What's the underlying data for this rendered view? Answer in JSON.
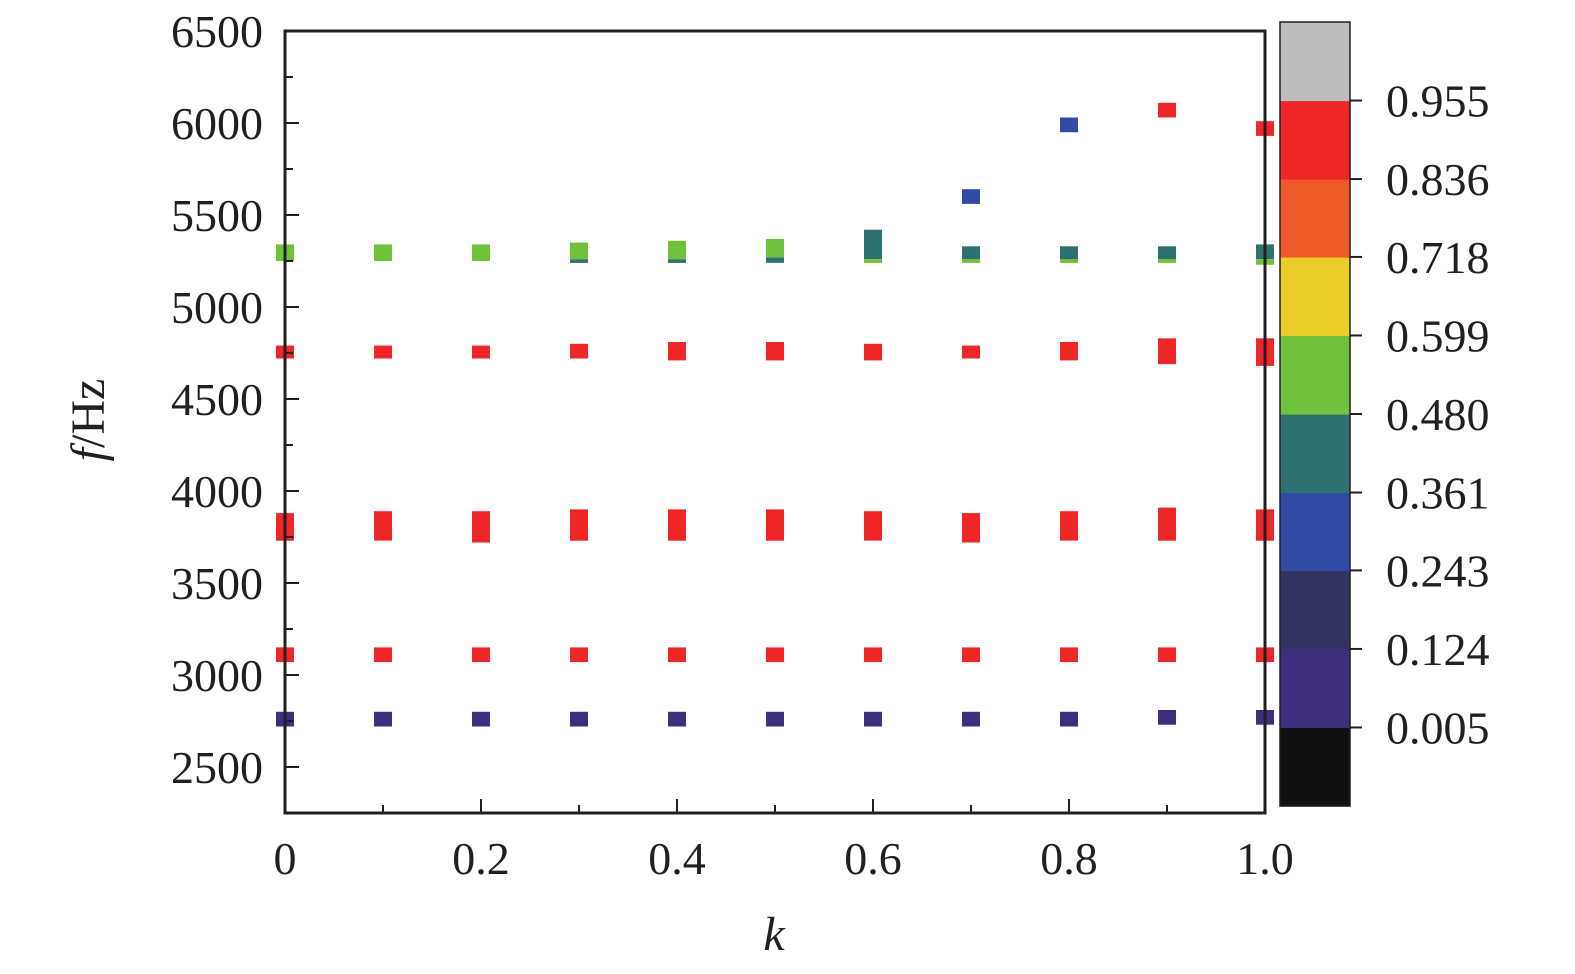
{
  "chart_data": {
    "type": "scatter",
    "xlabel": {
      "symbol": "k"
    },
    "ylabel": {
      "symbol": "f",
      "unit": "/Hz"
    },
    "xlim": [
      0,
      1.0
    ],
    "ylim": [
      2250,
      6500
    ],
    "x_ticks": [
      0,
      0.2,
      0.4,
      0.6,
      0.8,
      1.0
    ],
    "x_tick_labels": [
      "0",
      "0.2",
      "0.4",
      "0.6",
      "0.8",
      "1.0"
    ],
    "x_minor_ticks": [
      0.1,
      0.3,
      0.5,
      0.7,
      0.9
    ],
    "y_ticks": [
      2500,
      3000,
      3500,
      4000,
      4500,
      5000,
      5500,
      6000,
      6500
    ],
    "y_tick_labels": [
      "2500",
      "3000",
      "3500",
      "4000",
      "4500",
      "5000",
      "5500",
      "6000",
      "6500"
    ],
    "grid": false,
    "legend": "none",
    "colorbar": {
      "bands": [
        {
          "from": -0.114,
          "to": 0.005,
          "color": "#111111"
        },
        {
          "from": 0.005,
          "to": 0.124,
          "color": "#3f2e7e"
        },
        {
          "from": 0.124,
          "to": 0.243,
          "color": "#333463"
        },
        {
          "from": 0.243,
          "to": 0.361,
          "color": "#2f4ba4"
        },
        {
          "from": 0.361,
          "to": 0.48,
          "color": "#2f7070"
        },
        {
          "from": 0.48,
          "to": 0.599,
          "color": "#6fc23a"
        },
        {
          "from": 0.599,
          "to": 0.718,
          "color": "#ebcd27"
        },
        {
          "from": 0.718,
          "to": 0.836,
          "color": "#f05a28"
        },
        {
          "from": 0.836,
          "to": 0.955,
          "color": "#ee2628"
        },
        {
          "from": 0.955,
          "to": 1.074,
          "color": "#bcbcbc"
        }
      ],
      "tick_labels": [
        "0.005",
        "0.124",
        "0.243",
        "0.361",
        "0.480",
        "0.599",
        "0.718",
        "0.836",
        "0.955"
      ]
    },
    "markers": [
      {
        "k": 0,
        "f_top": 4790,
        "f_bottom": 4720,
        "color": "#ee2628"
      },
      {
        "k": 0.1,
        "f_top": 4790,
        "f_bottom": 4720,
        "color": "#ee2628"
      },
      {
        "k": 0.2,
        "f_top": 4790,
        "f_bottom": 4720,
        "color": "#ee2628"
      },
      {
        "k": 0.3,
        "f_top": 4800,
        "f_bottom": 4720,
        "color": "#ee2628"
      },
      {
        "k": 0.4,
        "f_top": 4810,
        "f_bottom": 4710,
        "color": "#ee2628"
      },
      {
        "k": 0.5,
        "f_top": 4810,
        "f_bottom": 4710,
        "color": "#ee2628"
      },
      {
        "k": 0.6,
        "f_top": 4800,
        "f_bottom": 4710,
        "color": "#ee2628"
      },
      {
        "k": 0.7,
        "f_top": 4790,
        "f_bottom": 4720,
        "color": "#ee2628"
      },
      {
        "k": 0.8,
        "f_top": 4810,
        "f_bottom": 4710,
        "color": "#ee2628"
      },
      {
        "k": 0.9,
        "f_top": 4830,
        "f_bottom": 4690,
        "color": "#ee2628"
      },
      {
        "k": 1.0,
        "f_top": 4830,
        "f_bottom": 4680,
        "color": "#ee2628"
      },
      {
        "k": 0,
        "f_top": 3880,
        "f_bottom": 3730,
        "color": "#ee2628"
      },
      {
        "k": 0.1,
        "f_top": 3890,
        "f_bottom": 3730,
        "color": "#ee2628"
      },
      {
        "k": 0.2,
        "f_top": 3890,
        "f_bottom": 3720,
        "color": "#ee2628"
      },
      {
        "k": 0.3,
        "f_top": 3900,
        "f_bottom": 3730,
        "color": "#ee2628"
      },
      {
        "k": 0.4,
        "f_top": 3900,
        "f_bottom": 3730,
        "color": "#ee2628"
      },
      {
        "k": 0.5,
        "f_top": 3900,
        "f_bottom": 3730,
        "color": "#ee2628"
      },
      {
        "k": 0.6,
        "f_top": 3890,
        "f_bottom": 3730,
        "color": "#ee2628"
      },
      {
        "k": 0.7,
        "f_top": 3880,
        "f_bottom": 3720,
        "color": "#ee2628"
      },
      {
        "k": 0.8,
        "f_top": 3890,
        "f_bottom": 3730,
        "color": "#ee2628"
      },
      {
        "k": 0.9,
        "f_top": 3910,
        "f_bottom": 3730,
        "color": "#ee2628"
      },
      {
        "k": 1.0,
        "f_top": 3900,
        "f_bottom": 3730,
        "color": "#ee2628"
      },
      {
        "k": 0,
        "f_top": 3150,
        "f_bottom": 3070,
        "color": "#ee2628"
      },
      {
        "k": 0.1,
        "f_top": 3150,
        "f_bottom": 3070,
        "color": "#ee2628"
      },
      {
        "k": 0.2,
        "f_top": 3150,
        "f_bottom": 3070,
        "color": "#ee2628"
      },
      {
        "k": 0.3,
        "f_top": 3150,
        "f_bottom": 3070,
        "color": "#ee2628"
      },
      {
        "k": 0.4,
        "f_top": 3150,
        "f_bottom": 3070,
        "color": "#ee2628"
      },
      {
        "k": 0.5,
        "f_top": 3150,
        "f_bottom": 3070,
        "color": "#ee2628"
      },
      {
        "k": 0.6,
        "f_top": 3150,
        "f_bottom": 3070,
        "color": "#ee2628"
      },
      {
        "k": 0.7,
        "f_top": 3150,
        "f_bottom": 3070,
        "color": "#ee2628"
      },
      {
        "k": 0.8,
        "f_top": 3150,
        "f_bottom": 3070,
        "color": "#ee2628"
      },
      {
        "k": 0.9,
        "f_top": 3150,
        "f_bottom": 3070,
        "color": "#ee2628"
      },
      {
        "k": 1.0,
        "f_top": 3150,
        "f_bottom": 3070,
        "color": "#ee2628"
      },
      {
        "k": 0,
        "f_top": 2800,
        "f_bottom": 2720,
        "color": "#3f2e7e"
      },
      {
        "k": 0.1,
        "f_top": 2800,
        "f_bottom": 2720,
        "color": "#3f2e7e"
      },
      {
        "k": 0.2,
        "f_top": 2800,
        "f_bottom": 2720,
        "color": "#3f2e7e"
      },
      {
        "k": 0.3,
        "f_top": 2800,
        "f_bottom": 2720,
        "color": "#3f2e7e"
      },
      {
        "k": 0.4,
        "f_top": 2800,
        "f_bottom": 2720,
        "color": "#3f2e7e"
      },
      {
        "k": 0.5,
        "f_top": 2800,
        "f_bottom": 2720,
        "color": "#3f2e7e"
      },
      {
        "k": 0.6,
        "f_top": 2800,
        "f_bottom": 2720,
        "color": "#3f2e7e"
      },
      {
        "k": 0.7,
        "f_top": 2800,
        "f_bottom": 2720,
        "color": "#3f2e7e"
      },
      {
        "k": 0.8,
        "f_top": 2800,
        "f_bottom": 2720,
        "color": "#3f2e7e"
      },
      {
        "k": 0.9,
        "f_top": 2810,
        "f_bottom": 2730,
        "color": "#3f2e7e"
      },
      {
        "k": 1.0,
        "f_top": 2810,
        "f_bottom": 2730,
        "color": "#3f2e7e"
      },
      {
        "k": 0,
        "f_top": 5340,
        "f_bottom": 5250,
        "color": "#6fc23a"
      },
      {
        "k": 0.1,
        "f_top": 5340,
        "f_bottom": 5250,
        "color": "#6fc23a"
      },
      {
        "k": 0.2,
        "f_top": 5340,
        "f_bottom": 5250,
        "color": "#6fc23a"
      },
      {
        "k": 0.3,
        "f_top": 5260,
        "f_bottom": 5240,
        "color": "#2f7070"
      },
      {
        "k": 0.3,
        "f_top": 5350,
        "f_bottom": 5260,
        "color": "#6fc23a"
      },
      {
        "k": 0.4,
        "f_top": 5260,
        "f_bottom": 5240,
        "color": "#2f7070"
      },
      {
        "k": 0.4,
        "f_top": 5360,
        "f_bottom": 5260,
        "color": "#6fc23a"
      },
      {
        "k": 0.5,
        "f_top": 5270,
        "f_bottom": 5240,
        "color": "#2f7070"
      },
      {
        "k": 0.5,
        "f_top": 5370,
        "f_bottom": 5270,
        "color": "#6fc23a"
      },
      {
        "k": 0.6,
        "f_top": 5260,
        "f_bottom": 5240,
        "color": "#6fc23a"
      },
      {
        "k": 0.6,
        "f_top": 5420,
        "f_bottom": 5260,
        "color": "#2f7070"
      },
      {
        "k": 0.7,
        "f_top": 5260,
        "f_bottom": 5240,
        "color": "#6fc23a"
      },
      {
        "k": 0.7,
        "f_top": 5330,
        "f_bottom": 5260,
        "color": "#2f7070"
      },
      {
        "k": 0.8,
        "f_top": 5260,
        "f_bottom": 5240,
        "color": "#6fc23a"
      },
      {
        "k": 0.8,
        "f_top": 5330,
        "f_bottom": 5260,
        "color": "#2f7070"
      },
      {
        "k": 0.9,
        "f_top": 5260,
        "f_bottom": 5240,
        "color": "#6fc23a"
      },
      {
        "k": 0.9,
        "f_top": 5330,
        "f_bottom": 5260,
        "color": "#2f7070"
      },
      {
        "k": 1.0,
        "f_top": 5260,
        "f_bottom": 5230,
        "color": "#6fc23a"
      },
      {
        "k": 1.0,
        "f_top": 5340,
        "f_bottom": 5260,
        "color": "#2f7070"
      },
      {
        "k": 0.7,
        "f_top": 5640,
        "f_bottom": 5560,
        "color": "#2f4ba4"
      },
      {
        "k": 0.8,
        "f_top": 6030,
        "f_bottom": 5950,
        "color": "#2f4ba4"
      },
      {
        "k": 0.9,
        "f_top": 6110,
        "f_bottom": 6030,
        "color": "#ee2628"
      },
      {
        "k": 1.0,
        "f_top": 6010,
        "f_bottom": 5930,
        "color": "#ee2628"
      }
    ]
  }
}
